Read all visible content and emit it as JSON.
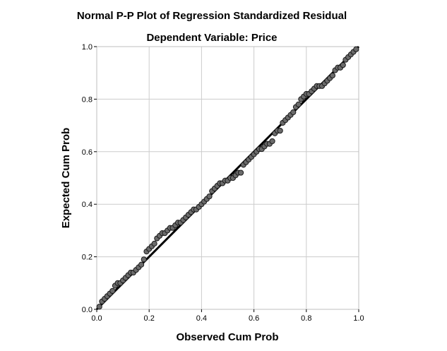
{
  "chart_data": {
    "type": "scatter",
    "title": "Normal P-P Plot of Regression Standardized Residual",
    "subtitle": "Dependent Variable: Price",
    "xlabel": "Observed Cum Prob",
    "ylabel": "Expected Cum Prob",
    "xlim": [
      0,
      1
    ],
    "ylim": [
      0,
      1
    ],
    "xticks": [
      "0.0",
      "0.2",
      "0.4",
      "0.6",
      "0.8",
      "1.0"
    ],
    "yticks": [
      "0.0",
      "0.2",
      "0.4",
      "0.6",
      "0.8",
      "1.0"
    ],
    "grid": true,
    "reference_line": {
      "from": [
        0,
        0
      ],
      "to": [
        1,
        1
      ]
    },
    "points": [
      [
        0.01,
        0.01
      ],
      [
        0.02,
        0.03
      ],
      [
        0.03,
        0.04
      ],
      [
        0.04,
        0.05
      ],
      [
        0.05,
        0.06
      ],
      [
        0.06,
        0.07
      ],
      [
        0.07,
        0.09
      ],
      [
        0.08,
        0.1
      ],
      [
        0.09,
        0.1
      ],
      [
        0.1,
        0.11
      ],
      [
        0.11,
        0.12
      ],
      [
        0.12,
        0.13
      ],
      [
        0.13,
        0.14
      ],
      [
        0.14,
        0.14
      ],
      [
        0.15,
        0.15
      ],
      [
        0.16,
        0.16
      ],
      [
        0.17,
        0.17
      ],
      [
        0.18,
        0.19
      ],
      [
        0.19,
        0.22
      ],
      [
        0.2,
        0.23
      ],
      [
        0.21,
        0.24
      ],
      [
        0.22,
        0.25
      ],
      [
        0.23,
        0.27
      ],
      [
        0.24,
        0.28
      ],
      [
        0.25,
        0.29
      ],
      [
        0.26,
        0.29
      ],
      [
        0.27,
        0.3
      ],
      [
        0.28,
        0.31
      ],
      [
        0.29,
        0.31
      ],
      [
        0.3,
        0.32
      ],
      [
        0.31,
        0.33
      ],
      [
        0.32,
        0.33
      ],
      [
        0.33,
        0.34
      ],
      [
        0.34,
        0.35
      ],
      [
        0.35,
        0.36
      ],
      [
        0.36,
        0.37
      ],
      [
        0.37,
        0.38
      ],
      [
        0.38,
        0.38
      ],
      [
        0.39,
        0.39
      ],
      [
        0.4,
        0.4
      ],
      [
        0.41,
        0.41
      ],
      [
        0.42,
        0.42
      ],
      [
        0.43,
        0.43
      ],
      [
        0.44,
        0.45
      ],
      [
        0.45,
        0.46
      ],
      [
        0.46,
        0.47
      ],
      [
        0.47,
        0.48
      ],
      [
        0.48,
        0.48
      ],
      [
        0.49,
        0.49
      ],
      [
        0.5,
        0.49
      ],
      [
        0.51,
        0.5
      ],
      [
        0.52,
        0.5
      ],
      [
        0.53,
        0.51
      ],
      [
        0.54,
        0.52
      ],
      [
        0.55,
        0.52
      ],
      [
        0.56,
        0.55
      ],
      [
        0.57,
        0.56
      ],
      [
        0.58,
        0.57
      ],
      [
        0.59,
        0.58
      ],
      [
        0.6,
        0.59
      ],
      [
        0.61,
        0.6
      ],
      [
        0.62,
        0.61
      ],
      [
        0.63,
        0.61
      ],
      [
        0.64,
        0.62
      ],
      [
        0.65,
        0.63
      ],
      [
        0.66,
        0.63
      ],
      [
        0.67,
        0.64
      ],
      [
        0.68,
        0.67
      ],
      [
        0.69,
        0.68
      ],
      [
        0.7,
        0.68
      ],
      [
        0.71,
        0.71
      ],
      [
        0.72,
        0.72
      ],
      [
        0.73,
        0.73
      ],
      [
        0.74,
        0.74
      ],
      [
        0.75,
        0.75
      ],
      [
        0.76,
        0.77
      ],
      [
        0.77,
        0.78
      ],
      [
        0.78,
        0.8
      ],
      [
        0.79,
        0.81
      ],
      [
        0.8,
        0.82
      ],
      [
        0.81,
        0.82
      ],
      [
        0.82,
        0.83
      ],
      [
        0.83,
        0.84
      ],
      [
        0.84,
        0.85
      ],
      [
        0.85,
        0.85
      ],
      [
        0.86,
        0.85
      ],
      [
        0.87,
        0.86
      ],
      [
        0.88,
        0.87
      ],
      [
        0.89,
        0.88
      ],
      [
        0.9,
        0.89
      ],
      [
        0.91,
        0.91
      ],
      [
        0.92,
        0.92
      ],
      [
        0.93,
        0.92
      ],
      [
        0.94,
        0.93
      ],
      [
        0.95,
        0.95
      ],
      [
        0.96,
        0.96
      ],
      [
        0.97,
        0.97
      ],
      [
        0.98,
        0.98
      ],
      [
        0.99,
        0.99
      ]
    ]
  },
  "colors": {
    "point_fill": "#6b6b6b",
    "point_stroke": "#1a1a1a",
    "line": "#000000",
    "grid": "#cccccc",
    "frame": "#bfbfbf"
  }
}
